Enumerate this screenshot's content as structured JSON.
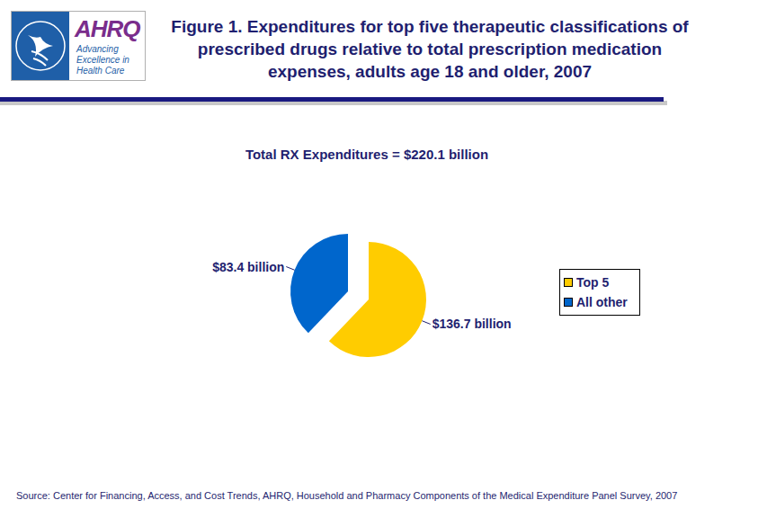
{
  "chart_data": {
    "type": "pie",
    "title": "Figure 1. Expenditures for top five therapeutic classifications of prescribed drugs relative to total prescription medication expenses, adults age 18 and older, 2007",
    "subtitle": "Total RX Expenditures = $220.1 billion",
    "categories": [
      "Top 5",
      "All other"
    ],
    "values": [
      136.7,
      83.4
    ],
    "value_labels": [
      "$136.7 billion",
      "$83.4 billion"
    ],
    "colors": [
      "#ffcc00",
      "#0066cc"
    ],
    "data_labels": true,
    "legend": "right",
    "source": "Source: Center for Financing, Access, and Cost Trends, AHRQ, Household and Pharmacy Components of the Medical Expenditure Panel Survey, 2007",
    "logo": {
      "name": "AHRQ",
      "tagline": "Advancing Excellence in Health Care"
    }
  }
}
